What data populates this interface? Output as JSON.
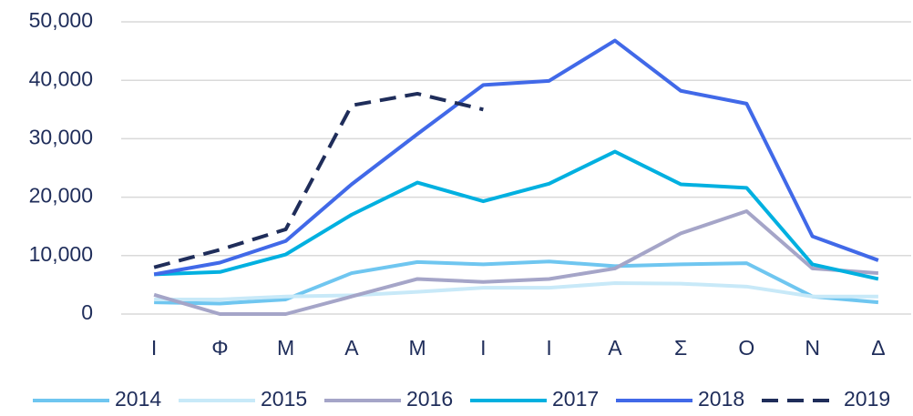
{
  "chart_data": {
    "type": "line",
    "categories": [
      "Ι",
      "Φ",
      "Μ",
      "Α",
      "Μ",
      "Ι",
      "Ι",
      "Α",
      "Σ",
      "Ο",
      "Ν",
      "Δ"
    ],
    "series": [
      {
        "name": "2014",
        "color": "#6fc6f0",
        "dash": false,
        "values": [
          2000,
          1800,
          2500,
          7000,
          8900,
          8500,
          9000,
          8200,
          8500,
          8700,
          3000,
          2000
        ]
      },
      {
        "name": "2015",
        "color": "#c8e9f8",
        "dash": false,
        "values": [
          2500,
          2500,
          3000,
          3200,
          3800,
          4500,
          4500,
          5300,
          5200,
          4700,
          3000,
          3000
        ]
      },
      {
        "name": "2016",
        "color": "#a5a5c8",
        "dash": false,
        "values": [
          3300,
          0,
          0,
          3000,
          6000,
          5500,
          6000,
          7800,
          13800,
          17600,
          7800,
          7000
        ]
      },
      {
        "name": "2017",
        "color": "#00b0e0",
        "dash": false,
        "values": [
          6800,
          7200,
          10200,
          17000,
          22500,
          19300,
          22300,
          27800,
          22200,
          21600,
          8500,
          6000
        ]
      },
      {
        "name": "2018",
        "color": "#4169e8",
        "dash": false,
        "values": [
          6800,
          8800,
          12500,
          22200,
          30800,
          39200,
          39900,
          46800,
          38200,
          36000,
          13300,
          9200
        ]
      },
      {
        "name": "2019",
        "color": "#1f2d5a",
        "dash": true,
        "values": [
          8000,
          11000,
          14500,
          35700,
          37700,
          35000,
          null,
          null,
          null,
          null,
          null,
          null
        ]
      }
    ],
    "ylim": [
      0,
      50000
    ],
    "yticks": [
      0,
      {
        "value": 10000,
        "label": "10,000"
      },
      {
        "value": 20000,
        "label": "20,000"
      },
      {
        "value": 30000,
        "label": "30,000"
      },
      {
        "value": 40000,
        "label": "40,000"
      },
      {
        "value": 50000,
        "label": "50,000"
      }
    ],
    "grid": true,
    "legend": "bottom"
  }
}
